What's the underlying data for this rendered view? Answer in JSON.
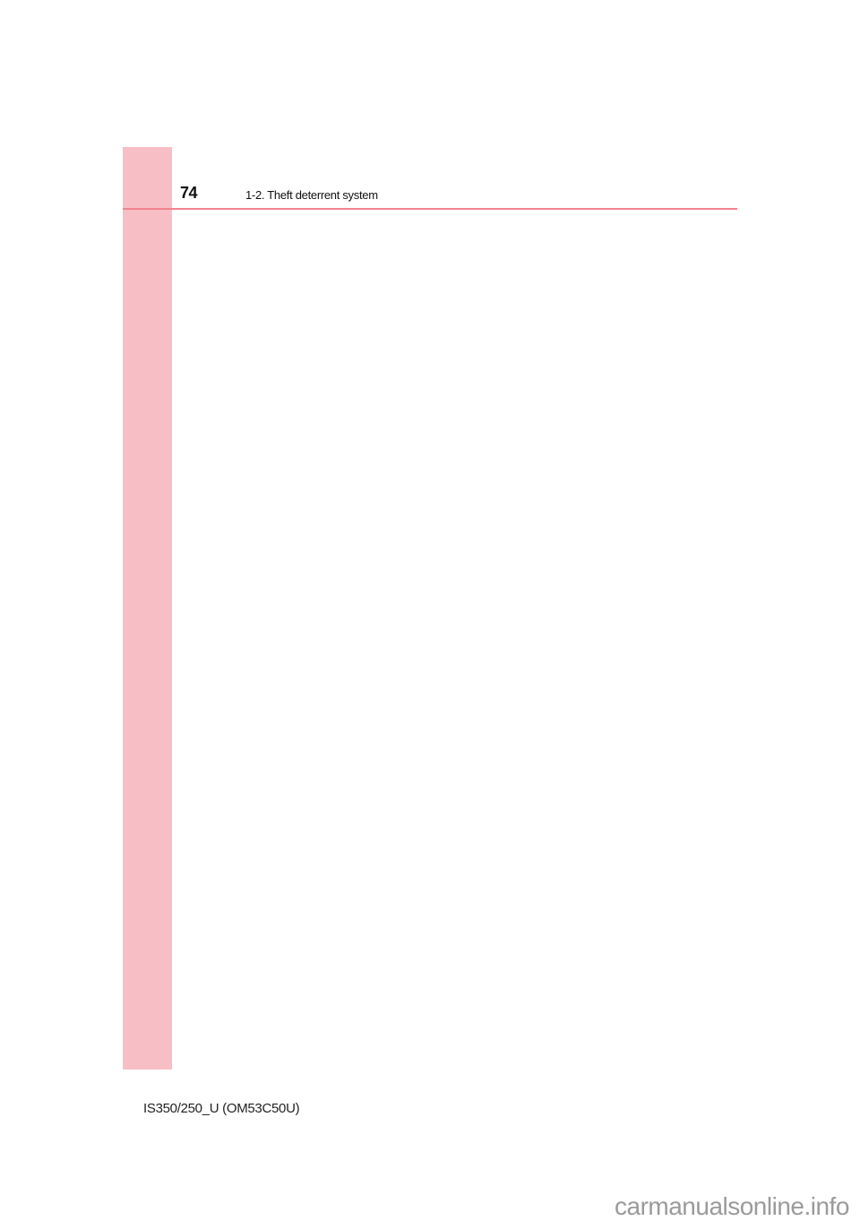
{
  "header": {
    "page_number": "74",
    "section_title": "1-2. Theft deterrent system"
  },
  "footer": {
    "model_code": "IS350/250_U (OM53C50U)"
  },
  "watermark": "carmanualsonline.info",
  "colors": {
    "side_tab": "#f8bec5",
    "header_rule": "#f2838f"
  }
}
